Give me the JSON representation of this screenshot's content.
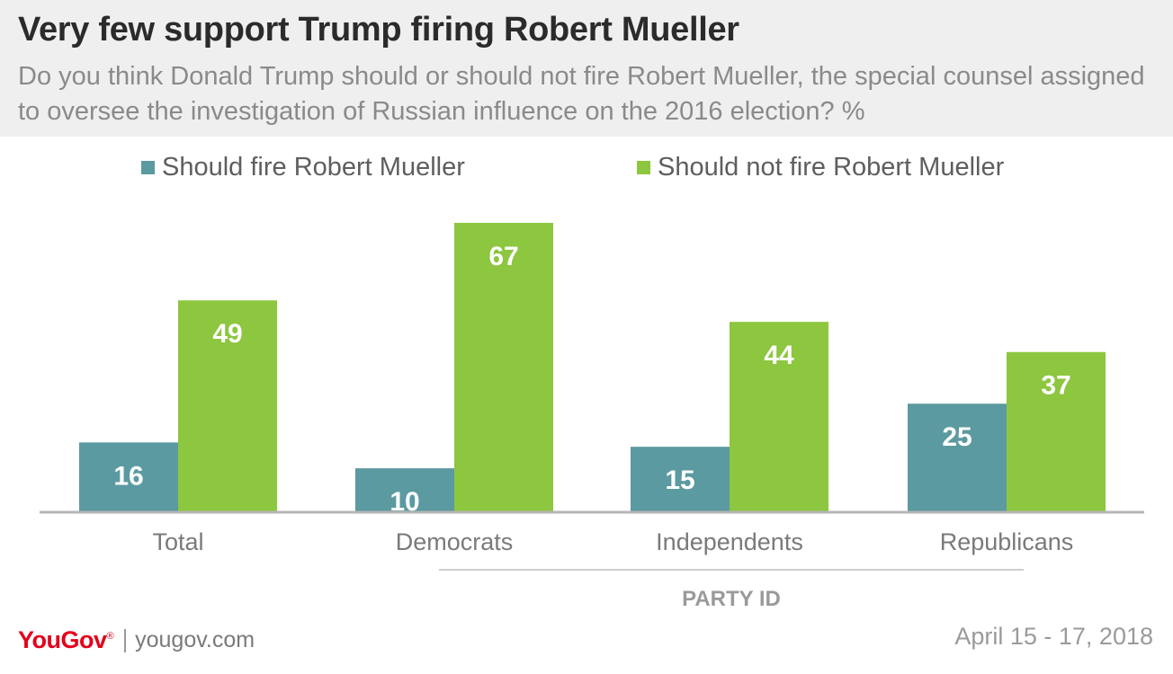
{
  "header": {
    "title": "Very few support Trump firing Robert Mueller",
    "subtitle": "Do you think Donald Trump should or should not fire Robert Mueller, the special counsel assigned to oversee the investigation of Russian influence on the 2016 election? %"
  },
  "chart_data": {
    "type": "bar",
    "categories": [
      "Total",
      "Democrats",
      "Independents",
      "Republicans"
    ],
    "series": [
      {
        "name": "Should fire Robert Mueller",
        "values": [
          16,
          10,
          15,
          25
        ],
        "color": "#5b9aa0"
      },
      {
        "name": "Should not fire Robert Mueller",
        "values": [
          49,
          67,
          44,
          37
        ],
        "color": "#8dc63f"
      }
    ],
    "group_label": "PARTY ID",
    "grouped_categories": [
      "Democrats",
      "Independents",
      "Republicans"
    ],
    "ylim": [
      0,
      67
    ],
    "grid": false,
    "legend": "top"
  },
  "footer": {
    "brand": "YouGov",
    "brand_mark": "®",
    "url": "yougov.com",
    "date": "April 15 - 17, 2018"
  },
  "colors": {
    "header_bg": "#efefef",
    "fire": "#5b9aa0",
    "not_fire": "#8dc63f",
    "brand": "#e3001b"
  }
}
